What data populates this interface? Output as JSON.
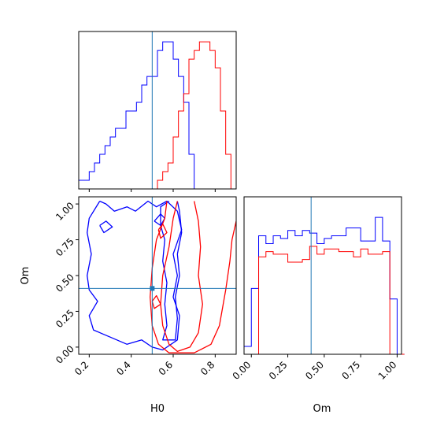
{
  "chart_data": [
    {
      "panel": "hist-H0",
      "type": "histogram",
      "xlim": [
        0.15,
        0.9
      ],
      "x_ticks": [
        0.2,
        0.4,
        0.6,
        0.8
      ],
      "truth_line": 0.5,
      "bin_edges": [
        0.15,
        0.175,
        0.2,
        0.225,
        0.25,
        0.275,
        0.3,
        0.325,
        0.35,
        0.375,
        0.4,
        0.425,
        0.45,
        0.475,
        0.5,
        0.525,
        0.55,
        0.575,
        0.6,
        0.625,
        0.65,
        0.675,
        0.7,
        0.725,
        0.75,
        0.775,
        0.8,
        0.825,
        0.85,
        0.875,
        0.9
      ],
      "series": [
        {
          "color": "#0000ff",
          "counts": [
            1,
            1,
            2,
            3,
            4,
            5,
            6,
            7,
            7,
            9,
            9,
            10,
            12,
            13,
            13,
            16,
            17,
            17,
            15,
            13,
            10,
            4,
            0,
            0,
            0,
            0,
            0,
            0,
            0,
            0
          ]
        },
        {
          "color": "#ff0000",
          "counts": [
            0,
            0,
            0,
            0,
            0,
            0,
            0,
            0,
            0,
            0,
            0,
            0,
            0,
            0,
            0,
            1,
            2,
            3,
            6,
            9,
            11,
            15,
            16,
            17,
            17,
            16,
            14,
            9,
            4,
            0
          ]
        }
      ]
    },
    {
      "panel": "hist-Om",
      "type": "histogram",
      "xlim": [
        -0.05,
        1.03
      ],
      "x_ticks": [
        0.0,
        0.25,
        0.5,
        0.75,
        1.0
      ],
      "x_tick_labels": [
        "0.00",
        "0.25",
        "0.50",
        "0.75",
        "1.00"
      ],
      "xlabel": "Om",
      "truth_line": 0.41,
      "bin_edges": [
        -0.05,
        0.0,
        0.05,
        0.1,
        0.15,
        0.2,
        0.25,
        0.3,
        0.35,
        0.4,
        0.45,
        0.5,
        0.55,
        0.6,
        0.65,
        0.7,
        0.75,
        0.8,
        0.85,
        0.9,
        0.95,
        1.0,
        1.05
      ],
      "series": [
        {
          "color": "#0000ff",
          "counts": [
            3,
            25,
            45,
            42,
            45,
            44,
            47,
            45,
            47,
            46,
            42,
            44,
            45,
            45,
            48,
            48,
            43,
            43,
            52,
            43,
            21,
            0
          ]
        },
        {
          "color": "#ff0000",
          "counts": [
            0,
            0,
            37,
            39,
            38,
            38,
            35,
            35,
            36,
            41,
            38,
            40,
            40,
            39,
            39,
            37,
            40,
            38,
            38,
            39,
            0,
            0
          ]
        }
      ]
    },
    {
      "panel": "contour-H0-Om",
      "type": "contour",
      "xlim": [
        0.15,
        0.9
      ],
      "ylim": [
        -0.05,
        1.05
      ],
      "x_ticks": [
        0.2,
        0.4,
        0.6,
        0.8
      ],
      "y_ticks": [
        0.0,
        0.25,
        0.5,
        0.75,
        1.0
      ],
      "y_tick_labels": [
        "0.00",
        "0.25",
        "0.50",
        "0.75",
        "1.00"
      ],
      "xlabel": "H0",
      "ylabel": "Om",
      "truth_point": [
        0.5,
        0.41
      ],
      "series": [
        {
          "color": "#0000ff",
          "contours": [
            [
              [
                0.58,
                1.02
              ],
              [
                0.54,
                0.98
              ],
              [
                0.54,
                0.85
              ],
              [
                0.56,
                0.75
              ],
              [
                0.55,
                0.6
              ],
              [
                0.57,
                0.45
              ],
              [
                0.56,
                0.3
              ],
              [
                0.57,
                0.15
              ],
              [
                0.55,
                0.05
              ],
              [
                0.61,
                0.05
              ],
              [
                0.62,
                0.2
              ],
              [
                0.61,
                0.35
              ],
              [
                0.63,
                0.5
              ],
              [
                0.62,
                0.65
              ],
              [
                0.64,
                0.8
              ],
              [
                0.63,
                0.95
              ],
              [
                0.62,
                1.02
              ]
            ],
            [
              [
                0.25,
                1.02
              ],
              [
                0.2,
                0.9
              ],
              [
                0.19,
                0.8
              ],
              [
                0.21,
                0.65
              ],
              [
                0.19,
                0.5
              ],
              [
                0.2,
                0.4
              ],
              [
                0.24,
                0.32
              ],
              [
                0.2,
                0.22
              ],
              [
                0.22,
                0.12
              ],
              [
                0.3,
                0.07
              ],
              [
                0.38,
                0.02
              ],
              [
                0.45,
                0.05
              ],
              [
                0.5,
                0.0
              ],
              [
                0.55,
                -0.02
              ],
              [
                0.62,
                0.05
              ],
              [
                0.63,
                0.22
              ],
              [
                0.6,
                0.35
              ],
              [
                0.62,
                0.5
              ],
              [
                0.6,
                0.65
              ],
              [
                0.64,
                0.82
              ],
              [
                0.62,
                0.95
              ],
              [
                0.57,
                1.02
              ],
              [
                0.52,
                0.98
              ],
              [
                0.48,
                1.02
              ],
              [
                0.42,
                0.95
              ],
              [
                0.38,
                0.98
              ],
              [
                0.32,
                0.95
              ],
              [
                0.28,
                1.0
              ],
              [
                0.25,
                1.02
              ]
            ],
            [
              [
                0.51,
                0.88
              ],
              [
                0.54,
                0.93
              ],
              [
                0.56,
                0.9
              ],
              [
                0.54,
                0.85
              ],
              [
                0.51,
                0.88
              ]
            ],
            [
              [
                0.25,
                0.85
              ],
              [
                0.28,
                0.88
              ],
              [
                0.31,
                0.84
              ],
              [
                0.27,
                0.8
              ],
              [
                0.25,
                0.85
              ]
            ]
          ]
        },
        {
          "color": "#ff0000",
          "contours": [
            [
              [
                0.62,
                1.02
              ],
              [
                0.6,
                0.9
              ],
              [
                0.58,
                0.7
              ],
              [
                0.55,
                0.5
              ],
              [
                0.54,
                0.3
              ],
              [
                0.55,
                0.15
              ],
              [
                0.58,
                0.02
              ],
              [
                0.62,
                -0.03
              ],
              [
                0.68,
                0.0
              ],
              [
                0.72,
                0.1
              ],
              [
                0.74,
                0.3
              ],
              [
                0.72,
                0.5
              ],
              [
                0.73,
                0.7
              ],
              [
                0.72,
                0.88
              ],
              [
                0.7,
                1.02
              ]
            ],
            [
              [
                0.57,
                1.02
              ],
              [
                0.56,
                0.9
              ],
              [
                0.52,
                0.75
              ],
              [
                0.5,
                0.55
              ],
              [
                0.49,
                0.35
              ],
              [
                0.5,
                0.15
              ],
              [
                0.53,
                0.02
              ],
              [
                0.58,
                -0.04
              ],
              [
                0.7,
                -0.04
              ],
              [
                0.78,
                0.02
              ],
              [
                0.82,
                0.15
              ],
              [
                0.85,
                0.4
              ],
              [
                0.87,
                0.6
              ],
              [
                0.88,
                0.75
              ],
              [
                0.9,
                0.88
              ]
            ],
            [
              [
                0.53,
                0.82
              ],
              [
                0.55,
                0.86
              ],
              [
                0.57,
                0.8
              ],
              [
                0.54,
                0.76
              ],
              [
                0.53,
                0.82
              ]
            ],
            [
              [
                0.5,
                0.32
              ],
              [
                0.52,
                0.36
              ],
              [
                0.54,
                0.3
              ],
              [
                0.51,
                0.27
              ],
              [
                0.5,
                0.32
              ]
            ]
          ]
        }
      ]
    }
  ]
}
